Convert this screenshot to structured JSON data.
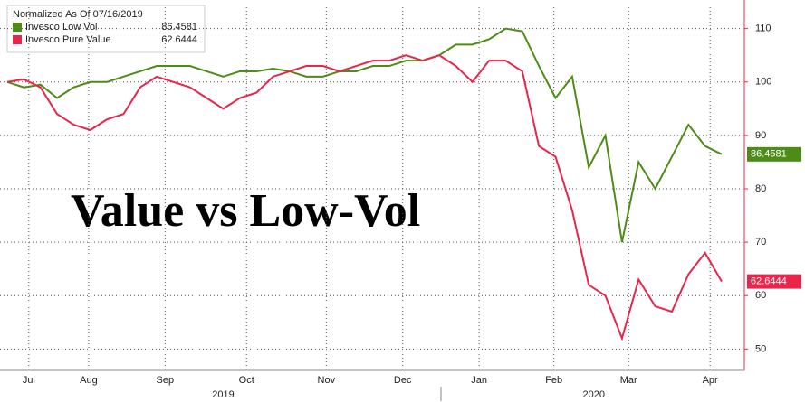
{
  "chart_data": {
    "type": "line",
    "title": "Normalized As Of 07/16/2019",
    "annotation": "Value vs Low-Vol",
    "series": [
      {
        "name": "Invesco Low Vol",
        "color": "#4d8c16",
        "values": [
          100,
          99,
          99.5,
          97,
          99,
          100,
          100,
          101,
          102,
          103,
          103,
          103,
          102,
          101,
          102,
          102,
          102.5,
          102,
          101,
          101,
          102,
          102,
          103,
          103,
          104,
          104,
          105,
          107,
          107,
          108,
          110,
          109.5,
          103,
          97,
          101,
          84,
          90,
          70,
          85,
          80,
          86,
          92,
          88,
          86.4581
        ]
      },
      {
        "name": "Invesco Pure Value",
        "color": "#e8264c",
        "values": [
          100,
          100.5,
          99,
          94,
          92,
          91,
          93,
          94,
          99,
          101,
          100,
          99,
          97,
          95,
          97,
          98,
          101,
          102,
          103,
          103,
          102,
          103,
          104,
          104,
          105,
          104,
          105,
          103,
          100,
          104,
          104,
          102,
          88,
          86,
          76,
          62,
          60,
          52,
          63,
          58,
          57,
          64,
          68,
          62.6444
        ]
      }
    ],
    "xlim": [
      0,
      43
    ],
    "xticks": [
      {
        "value": 1.3,
        "label": "Jul"
      },
      {
        "value": 4.9,
        "label": "Aug"
      },
      {
        "value": 9.5,
        "label": "Sep"
      },
      {
        "value": 14.4,
        "label": "Oct"
      },
      {
        "value": 19.2,
        "label": "Nov"
      },
      {
        "value": 23.8,
        "label": "Dec"
      },
      {
        "value": 28.4,
        "label": "Jan"
      },
      {
        "value": 32.9,
        "label": "Feb"
      },
      {
        "value": 37.4,
        "label": "Mar"
      },
      {
        "value": 42.3,
        "label": "Apr"
      }
    ],
    "year_labels": [
      {
        "value": 13.0,
        "label": "2019"
      },
      {
        "value": 35.3,
        "label": "2020"
      }
    ],
    "ylim": [
      46,
      114
    ],
    "yticks": [
      50,
      60,
      70,
      80,
      90,
      100,
      110
    ],
    "grid": true
  }
}
